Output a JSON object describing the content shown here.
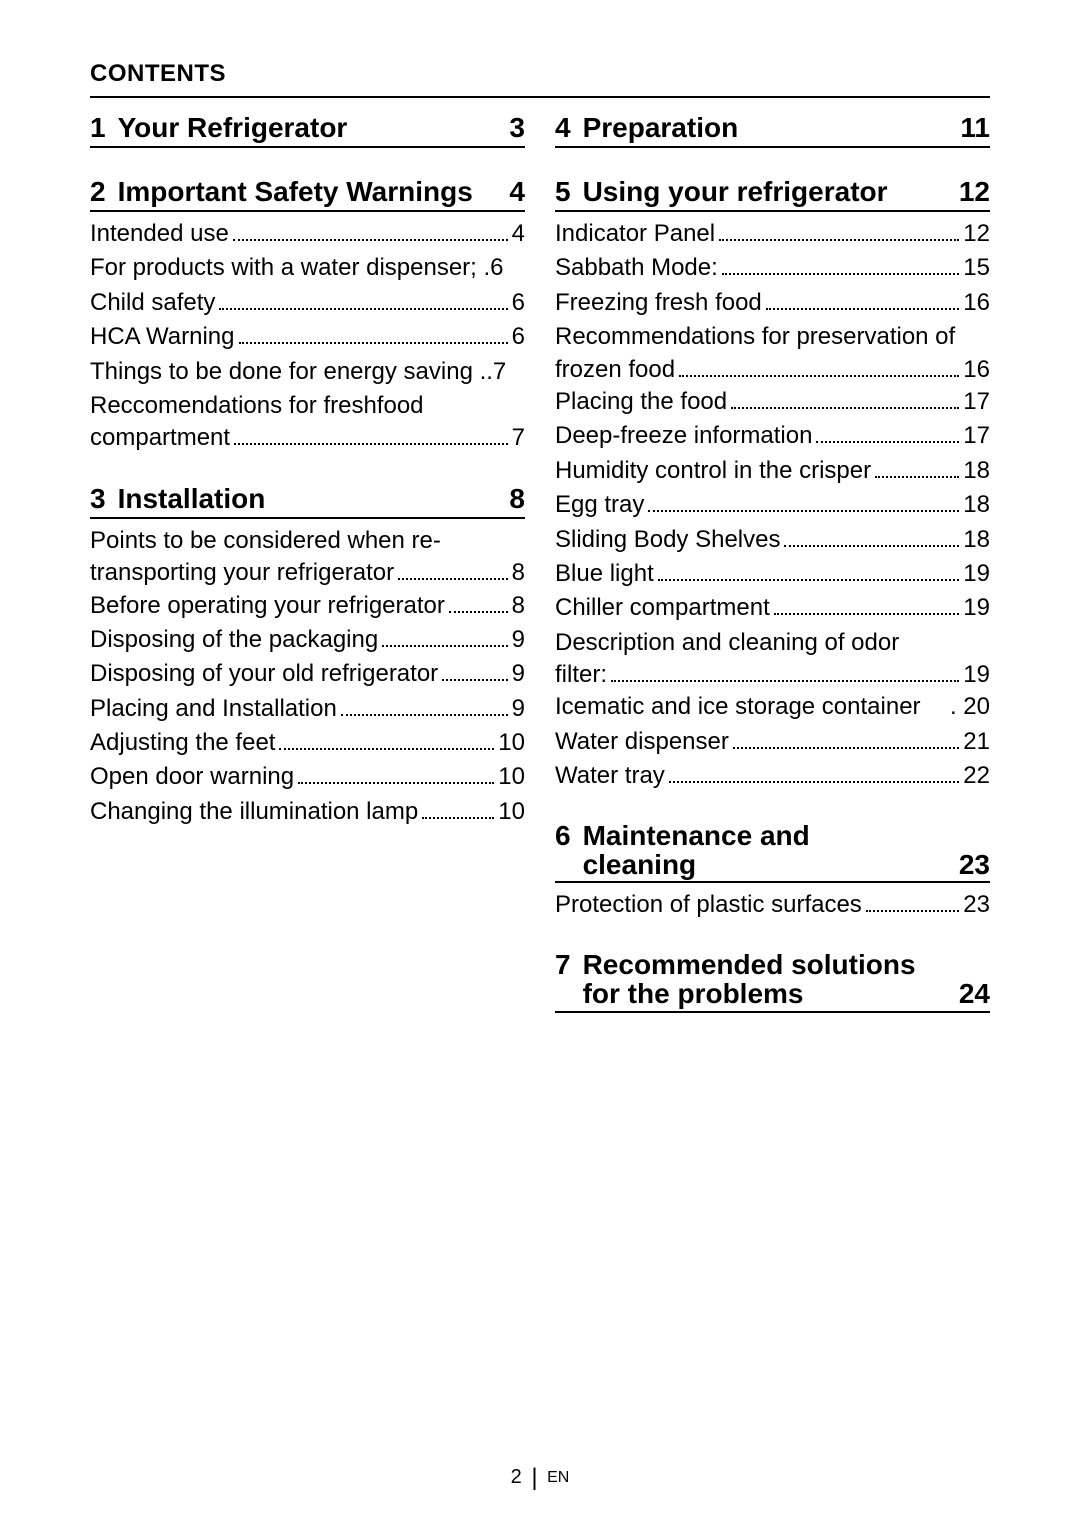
{
  "contents_label": "CONTENTS",
  "left": {
    "s1": {
      "num": "1",
      "title": "Your Refrigerator",
      "page": "3"
    },
    "s2": {
      "num": "2",
      "title": "Important Safety Warnings",
      "page": "4",
      "items": [
        {
          "label": "Intended use",
          "page": "4"
        },
        {
          "label_multi": [
            "For products with a water dispenser;"
          ],
          "label_last": "",
          "page": "6",
          "nodots": false,
          "tight": true
        },
        {
          "label": "Child safety",
          "page": "6"
        },
        {
          "label": "HCA Warning",
          "page": "6"
        },
        {
          "label_multi": [
            "Things to be done for energy saving"
          ],
          "label_last": "",
          "page": "7",
          "nodots": true
        },
        {
          "label_multi": [
            "Reccomendations for freshfood"
          ],
          "label_last": "compartment",
          "page": "7"
        }
      ]
    },
    "s3": {
      "num": "3",
      "title": "Installation",
      "page": "8",
      "items": [
        {
          "label_multi": [
            "Points to be considered when re-"
          ],
          "label_last": "transporting your refrigerator",
          "page": "8"
        },
        {
          "label": "Before operating your refrigerator",
          "page": "8"
        },
        {
          "label": "Disposing of the packaging",
          "page": "9"
        },
        {
          "label": "Disposing of your old refrigerator",
          "page": "9"
        },
        {
          "label": "Placing and Installation",
          "page": "9"
        },
        {
          "label": "Adjusting the feet",
          "page": "10"
        },
        {
          "label": "Open door warning",
          "page": "10"
        },
        {
          "label": "Changing the illumination lamp",
          "page": "10"
        }
      ]
    }
  },
  "right": {
    "s4": {
      "num": "4",
      "title": "Preparation",
      "page": "11"
    },
    "s5": {
      "num": "5",
      "title": "Using your refrigerator",
      "page": "12",
      "items": [
        {
          "label": "Indicator Panel",
          "page": "12"
        },
        {
          "label": "Sabbath Mode:",
          "page": "15"
        },
        {
          "label": "Freezing fresh food",
          "page": "16"
        },
        {
          "label_multi": [
            "Recommendations for preservation of"
          ],
          "label_last": "frozen food",
          "page": "16"
        },
        {
          "label": "Placing the food",
          "page": "17"
        },
        {
          "label": "Deep-freeze information",
          "page": "17"
        },
        {
          "label": "Humidity control in the crisper",
          "page": "18"
        },
        {
          "label": "Egg tray",
          "page": "18"
        },
        {
          "label": "Sliding Body Shelves",
          "page": "18"
        },
        {
          "label": "Blue light",
          "page": "19"
        },
        {
          "label": "Chiller compartment",
          "page": "19"
        },
        {
          "label_multi": [
            "Description and cleaning of odor"
          ],
          "label_last": "filter:",
          "page": "19"
        },
        {
          "label": "Icematic and ice storage container",
          "page": "20",
          "dotsep": true
        },
        {
          "label": "Water dispenser",
          "page": "21"
        },
        {
          "label": "Water tray",
          "page": "22"
        }
      ]
    },
    "s6": {
      "num": "6",
      "title_lines": [
        "Maintenance and",
        "cleaning"
      ],
      "page": "23",
      "items": [
        {
          "label": "Protection of plastic surfaces",
          "page": "23"
        }
      ]
    },
    "s7": {
      "num": "7",
      "title_lines": [
        "Recommended solutions",
        "for the problems"
      ],
      "page": "24"
    }
  },
  "footer": {
    "page": "2",
    "lang": "EN"
  }
}
